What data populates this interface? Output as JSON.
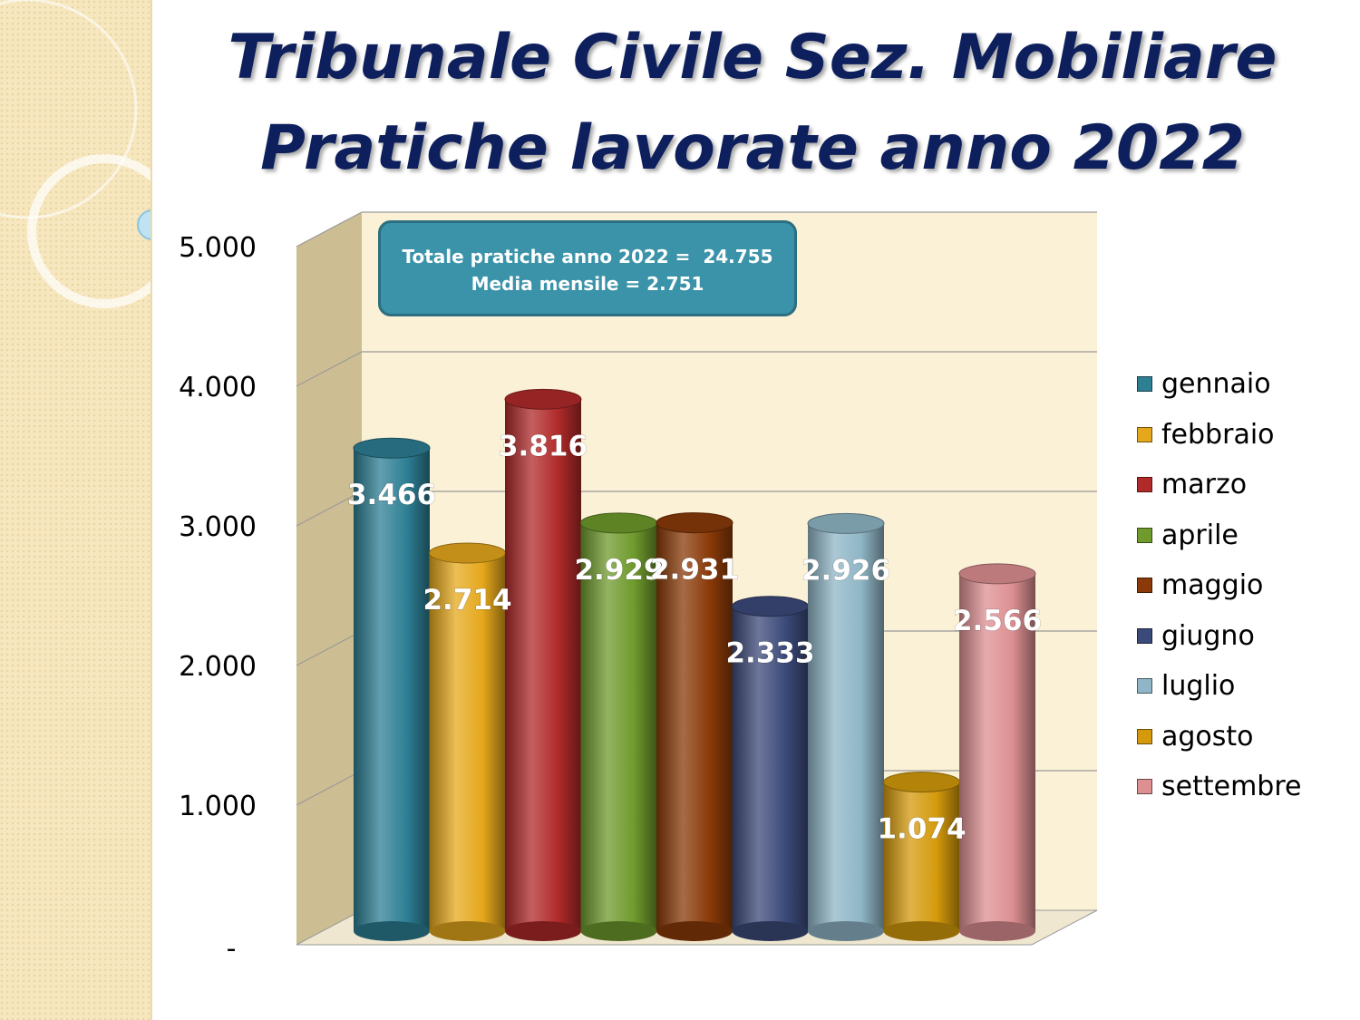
{
  "title": {
    "line1": "Tribunale Civile Sez. Mobiliare",
    "line2": "Pratiche lavorate anno 2022"
  },
  "info_box": {
    "line1": "Totale pratiche anno 2022 =  24.755",
    "line2": "Media mensile = 2.751"
  },
  "chart_data": {
    "type": "bar",
    "categories": [
      "gennaio",
      "febbraio",
      "marzo",
      "aprile",
      "maggio",
      "giugno",
      "luglio",
      "agosto",
      "settembre"
    ],
    "values": [
      3466,
      2714,
      3816,
      2929,
      2931,
      2333,
      2926,
      1074,
      2566
    ],
    "value_labels": [
      "3.466",
      "2.714",
      "3.816",
      "2.929",
      "2.931",
      "2.333",
      "2.926",
      "1.074",
      "2.566"
    ],
    "colors": [
      "#2d7f94",
      "#e5a81c",
      "#b02a2a",
      "#6f9a2c",
      "#8a3a08",
      "#3c4a7a",
      "#8fb6c6",
      "#d49a0c",
      "#dd8f92"
    ],
    "ylim": [
      0,
      5000
    ],
    "y_ticks": [
      {
        "value": 0,
        "label": "-"
      },
      {
        "value": 1000,
        "label": "1.000"
      },
      {
        "value": 2000,
        "label": "2.000"
      },
      {
        "value": 3000,
        "label": "3.000"
      },
      {
        "value": 4000,
        "label": "4.000"
      },
      {
        "value": 5000,
        "label": "5.000"
      }
    ],
    "grid": true,
    "legend_position": "right"
  }
}
